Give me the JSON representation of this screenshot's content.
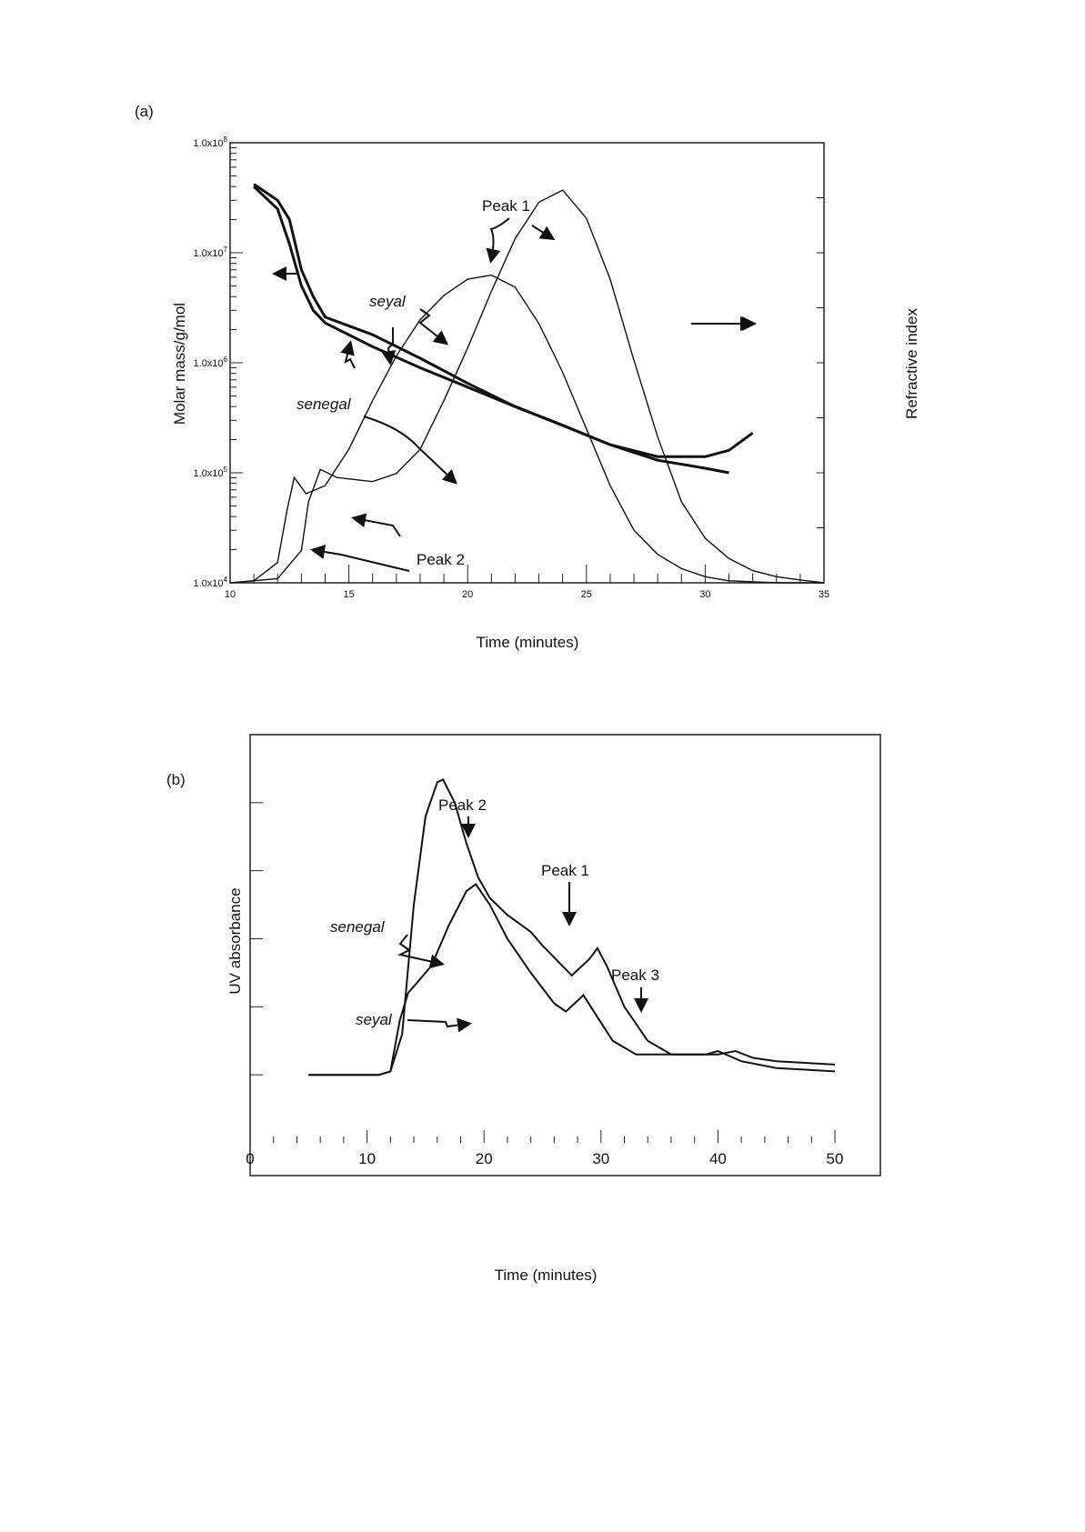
{
  "chart_data": [
    {
      "panel": "(a)",
      "type": "line",
      "xlabel": "Time (minutes)",
      "ylabel": "Molar mass/g/mol",
      "y2label": "Refractive index",
      "xlim": [
        10,
        35
      ],
      "ylim": [
        10000,
        100000000
      ],
      "yscale": "log",
      "xticks": [
        "10",
        "15",
        "20",
        "25",
        "30",
        "35"
      ],
      "yticks": [
        "1.0x10^4",
        "1.0x10^5",
        "1.0x10^6",
        "1.0x10^7",
        "1.0x10^8"
      ],
      "annotations": {
        "peak1": "Peak 1",
        "peak2": "Peak 2",
        "seyal": "seyal",
        "senegal": "senegal"
      },
      "molar_mass_series": [
        {
          "name": "senegal",
          "x": [
            11,
            12,
            12.5,
            13,
            13.5,
            14,
            16,
            18,
            20,
            22,
            24,
            26,
            28,
            30,
            31
          ],
          "y": [
            40000000,
            25000000,
            12000000,
            5000000,
            3000000,
            2300000,
            1400000,
            900000,
            600000,
            400000,
            270000,
            180000,
            130000,
            110000,
            100000
          ]
        },
        {
          "name": "seyal",
          "x": [
            11,
            12,
            12.5,
            13,
            13.5,
            14,
            16,
            18,
            20,
            22,
            24,
            26,
            28,
            30,
            31,
            32
          ],
          "y": [
            42000000,
            30000000,
            20000000,
            7000000,
            4000000,
            2600000,
            1800000,
            1100000,
            650000,
            400000,
            270000,
            180000,
            140000,
            140000,
            160000,
            230000
          ]
        }
      ],
      "refractive_index_series": [
        {
          "name": "senegal",
          "x": [
            10,
            11,
            12,
            12.4,
            12.7,
            13.2,
            14,
            15,
            16,
            17,
            18,
            19,
            20,
            21,
            22,
            23,
            24,
            25,
            26,
            27,
            28,
            29,
            30,
            31,
            33,
            35
          ],
          "y": [
            0,
            0.005,
            0.05,
            0.18,
            0.26,
            0.22,
            0.24,
            0.33,
            0.45,
            0.56,
            0.65,
            0.71,
            0.75,
            0.76,
            0.73,
            0.64,
            0.52,
            0.38,
            0.24,
            0.13,
            0.07,
            0.035,
            0.015,
            0.005,
            0,
            0
          ]
        },
        {
          "name": "seyal",
          "x": [
            10,
            12,
            13,
            13.3,
            13.8,
            14.5,
            16,
            17,
            18,
            19,
            20,
            21,
            22,
            23,
            24,
            25,
            26,
            27,
            28,
            29,
            30,
            31,
            32,
            33,
            34,
            35
          ],
          "y": [
            0,
            0.01,
            0.08,
            0.2,
            0.28,
            0.26,
            0.25,
            0.27,
            0.33,
            0.45,
            0.58,
            0.72,
            0.85,
            0.94,
            0.97,
            0.9,
            0.75,
            0.55,
            0.36,
            0.2,
            0.11,
            0.06,
            0.03,
            0.015,
            0.007,
            0
          ]
        }
      ]
    },
    {
      "panel": "(b)",
      "type": "line",
      "xlabel": "Time (minutes)",
      "ylabel": "UV absorbance",
      "xlim": [
        0,
        50
      ],
      "ylim": [
        0,
        6
      ],
      "xticks": [
        "0",
        "10",
        "20",
        "30",
        "40",
        "50"
      ],
      "annotations": {
        "peak1": "Peak 1",
        "peak2": "Peak 2",
        "peak3": "Peak 3",
        "seyal": "seyal",
        "senegal": "senegal"
      },
      "series": [
        {
          "name": "senegal",
          "x": [
            5,
            11,
            12,
            13,
            14,
            15,
            16,
            16.5,
            17.5,
            18.5,
            19.5,
            20.5,
            22,
            24,
            25,
            27.5,
            29,
            29.7,
            30.5,
            32,
            34,
            36,
            38,
            40,
            41.5,
            43,
            45,
            50
          ],
          "y": [
            1,
            1,
            1.05,
            1.6,
            3.5,
            4.8,
            5.3,
            5.34,
            5.0,
            4.4,
            3.9,
            3.6,
            3.35,
            3.1,
            2.9,
            2.46,
            2.7,
            2.86,
            2.6,
            2.0,
            1.5,
            1.3,
            1.3,
            1.3,
            1.35,
            1.25,
            1.2,
            1.15
          ]
        },
        {
          "name": "seyal",
          "x": [
            5,
            11,
            12,
            12.8,
            13.5,
            14.5,
            15.5,
            17,
            18.5,
            19.3,
            20.5,
            22,
            24,
            26,
            27,
            28.5,
            29.5,
            31,
            33,
            36,
            39,
            40,
            42,
            45,
            50
          ],
          "y": [
            1,
            1,
            1.05,
            1.8,
            2.2,
            2.4,
            2.6,
            3.2,
            3.7,
            3.8,
            3.5,
            3.0,
            2.5,
            2.05,
            1.93,
            2.17,
            1.9,
            1.5,
            1.3,
            1.3,
            1.3,
            1.35,
            1.2,
            1.1,
            1.05
          ]
        }
      ]
    }
  ]
}
